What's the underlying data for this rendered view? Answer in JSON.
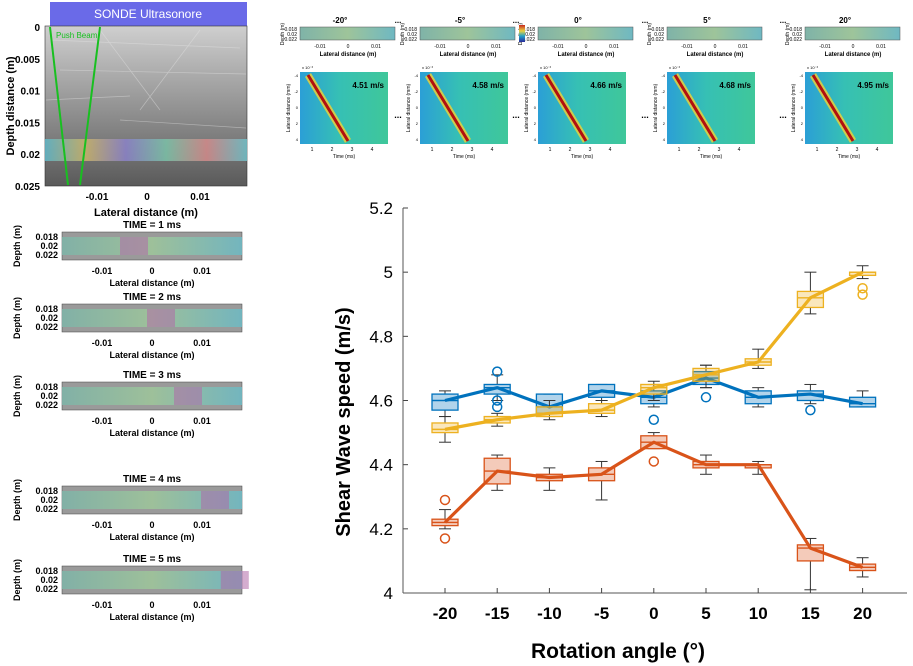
{
  "sonde": {
    "title": "SONDE Ultrasonore",
    "push_beam_label": "Push Beam",
    "ylabel": "Depth distance (m)",
    "xlabel": "Lateral distance (m)",
    "y_ticks": [
      "0",
      "0.005",
      "0.01",
      "0.015",
      "0.02",
      "0.025"
    ],
    "x_ticks": [
      "-0.01",
      "0",
      "0.01"
    ]
  },
  "time_panels": {
    "ylabel": "Depth (m)",
    "xlabel": "Lateral distance (m)",
    "y_ticks": [
      "0.018",
      "0.02",
      "0.022"
    ],
    "x_ticks": [
      "-0.01",
      "0",
      "0.01"
    ],
    "titles": [
      "TIME = 1 ms",
      "TIME = 2 ms",
      "TIME = 3 ms",
      "TIME = 4 ms",
      "TIME = 5 ms"
    ],
    "highlight": [
      0.4,
      0.55,
      0.7,
      0.85,
      0.96
    ]
  },
  "angle_panels": {
    "titles": [
      "-20°",
      "-5°",
      "0°",
      "5°",
      "20°"
    ],
    "ellipsis": "...",
    "ylabel": "Depth (m)",
    "xlabel": "Lateral distance (m)",
    "y_ticks": [
      "0.018",
      "0.02",
      "0.022"
    ],
    "x_ticks": [
      "-0.01",
      "0",
      "0.01"
    ],
    "speeds": [
      "4.51 m/s",
      "4.58 m/s",
      "4.66 m/s",
      "4.68 m/s",
      "4.95 m/s"
    ],
    "map_ylabel": "Lateral distance (mm)",
    "map_xlabel": "Time (ms)",
    "map_x_ticks": [
      "1",
      "2",
      "3",
      "4"
    ],
    "map_y_ticks": [
      "-4",
      "-2",
      "0",
      "2",
      "4"
    ],
    "map_exponent": "x 10⁻³"
  },
  "chart_data": {
    "type": "box",
    "title": "",
    "xlabel": "Rotation angle (°)",
    "ylabel": "Shear Wave speed (m/s)",
    "categories": [
      "-20",
      "-15",
      "-10",
      "-5",
      "0",
      "5",
      "10",
      "15",
      "20"
    ],
    "ylim": [
      4,
      5.2
    ],
    "y_ticks": [
      "4",
      "4.2",
      "4.4",
      "4.6",
      "4.8",
      "5",
      "5.2"
    ],
    "series": [
      {
        "name": "blue",
        "color": "#0072BD",
        "values": [
          4.6,
          4.64,
          4.58,
          4.63,
          4.61,
          4.67,
          4.61,
          4.62,
          4.59
        ],
        "q1": [
          4.57,
          4.62,
          4.56,
          4.61,
          4.59,
          4.65,
          4.59,
          4.6,
          4.58
        ],
        "q3": [
          4.62,
          4.65,
          4.62,
          4.65,
          4.63,
          4.69,
          4.63,
          4.63,
          4.61
        ],
        "whisker_low": [
          4.55,
          4.6,
          4.55,
          4.6,
          4.58,
          4.64,
          4.58,
          4.59,
          4.58
        ],
        "whisker_high": [
          4.63,
          4.68,
          4.62,
          4.65,
          4.65,
          4.71,
          4.64,
          4.65,
          4.63
        ],
        "outliers": [
          [],
          [
            4.69,
            4.58,
            4.6
          ],
          [],
          [],
          [
            4.54
          ],
          [
            4.61
          ],
          [],
          [
            4.57
          ],
          []
        ]
      },
      {
        "name": "yellow",
        "color": "#EDB120",
        "values": [
          4.51,
          4.54,
          4.56,
          4.57,
          4.64,
          4.68,
          4.72,
          4.92,
          5.0
        ],
        "q1": [
          4.5,
          4.53,
          4.55,
          4.56,
          4.62,
          4.66,
          4.71,
          4.89,
          4.99
        ],
        "q3": [
          4.53,
          4.55,
          4.58,
          4.59,
          4.65,
          4.7,
          4.73,
          4.94,
          5.0
        ],
        "whisker_low": [
          4.47,
          4.52,
          4.54,
          4.55,
          4.6,
          4.64,
          4.7,
          4.87,
          4.98
        ],
        "whisker_high": [
          4.55,
          4.56,
          4.6,
          4.6,
          4.66,
          4.71,
          4.76,
          5.0,
          5.02
        ],
        "outliers": [
          [],
          [],
          [],
          [],
          [],
          [],
          [],
          [],
          [
            4.95,
            4.93
          ]
        ]
      },
      {
        "name": "orange",
        "color": "#D95319",
        "values": [
          4.22,
          4.38,
          4.36,
          4.37,
          4.47,
          4.4,
          4.4,
          4.14,
          4.08
        ],
        "q1": [
          4.21,
          4.34,
          4.35,
          4.35,
          4.45,
          4.39,
          4.39,
          4.1,
          4.07
        ],
        "q3": [
          4.23,
          4.42,
          4.37,
          4.39,
          4.49,
          4.41,
          4.4,
          4.15,
          4.09
        ],
        "whisker_low": [
          4.2,
          4.32,
          4.32,
          4.29,
          4.45,
          4.37,
          4.37,
          4.01,
          4.05
        ],
        "whisker_high": [
          4.26,
          4.43,
          4.39,
          4.41,
          4.5,
          4.43,
          4.41,
          4.17,
          4.11
        ],
        "outliers": [
          [
            4.29,
            4.17
          ],
          [],
          [],
          [],
          [
            4.41
          ],
          [],
          [],
          [],
          []
        ]
      }
    ]
  }
}
